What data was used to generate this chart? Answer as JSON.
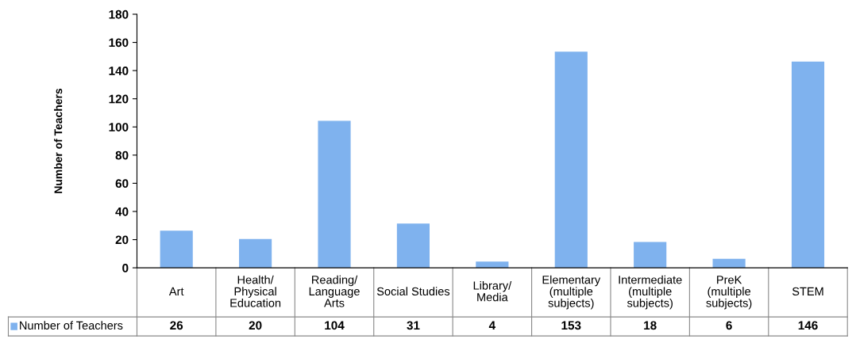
{
  "chart_data": {
    "type": "bar",
    "ylabel": "Number of Teachers",
    "categories": [
      "Art",
      "Health/\nPhysical\nEducation",
      "Reading/\nLanguage\nArts",
      "Social Studies",
      "Library/\nMedia",
      "Elementary\n(multiple\nsubjects)",
      "Intermediate\n(multiple\nsubjects)",
      "PreK\n(multiple\nsubjects)",
      "STEM"
    ],
    "series": [
      {
        "name": "Number of Teachers",
        "color": "#7fb2ee",
        "values": [
          26,
          20,
          104,
          31,
          4,
          153,
          18,
          6,
          146
        ]
      }
    ],
    "ylim": [
      0,
      180
    ],
    "yticks": [
      0,
      20,
      40,
      60,
      80,
      100,
      120,
      140,
      160,
      180
    ],
    "data_labels": true,
    "legend": "bottom",
    "grid": false
  }
}
